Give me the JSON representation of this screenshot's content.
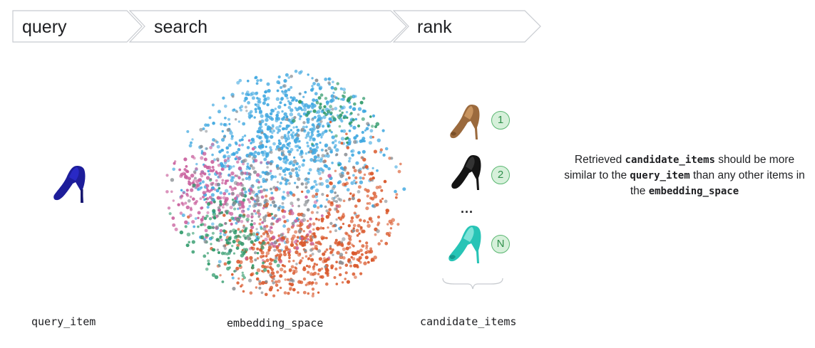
{
  "pipeline": {
    "steps": [
      {
        "label": "query"
      },
      {
        "label": "search"
      },
      {
        "label": "rank"
      }
    ]
  },
  "captions": {
    "query_item": "query_item",
    "embedding_space": "embedding_space",
    "candidate_items": "candidate_items"
  },
  "candidates": {
    "badges": [
      "1",
      "2",
      "N"
    ],
    "ellipsis": "..."
  },
  "note": {
    "part1": "Retrieved ",
    "term1": "candidate_items",
    "part2": " should be more similar to the ",
    "term2": "query_item",
    "part3": " than any other items in the ",
    "term3": "embedding_space"
  },
  "colors": {
    "chevron_border": "#c8cbd0",
    "badge_fill": "#d6f0da",
    "badge_border": "#5bb772",
    "cluster_blue": "#3ea7e0",
    "cluster_orange": "#d9572a",
    "cluster_pink": "#c9609d",
    "cluster_green": "#2f9a6a",
    "cluster_gray": "#8a8f94"
  }
}
